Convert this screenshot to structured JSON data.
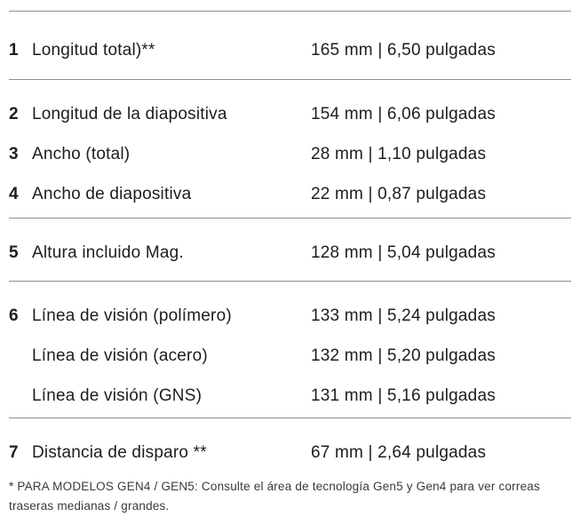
{
  "colors": {
    "background": "#ffffff",
    "text": "#1d1d1d",
    "separator": "#8f8f8f",
    "footnote_text": "#3a3a3a"
  },
  "spec_table": {
    "unit_separator": "|",
    "groups": [
      {
        "rows": [
          {
            "num": "1",
            "label": "Longitud total)**",
            "value": "165 mm | 6,50 pulgadas"
          }
        ]
      },
      {
        "rows": [
          {
            "num": "2",
            "label": "Longitud de la diapositiva",
            "value": "154 mm | 6,06 pulgadas"
          },
          {
            "num": "3",
            "label": "Ancho (total)",
            "value": "28 mm | 1,10 pulgadas"
          },
          {
            "num": "4",
            "label": "Ancho de diapositiva",
            "value": "22 mm | 0,87 pulgadas"
          }
        ]
      },
      {
        "rows": [
          {
            "num": "5",
            "label": "Altura incluido Mag.",
            "value": "128 mm | 5,04 pulgadas"
          }
        ]
      },
      {
        "rows": [
          {
            "num": "6",
            "label": "Línea de visión (polímero)",
            "value": "133 mm | 5,24 pulgadas"
          },
          {
            "num": "",
            "label": "Línea de visión (acero)",
            "value": "132 mm | 5,20 pulgadas"
          },
          {
            "num": "",
            "label": "Línea de visión (GNS)",
            "value": "131 mm | 5,16 pulgadas"
          }
        ]
      },
      {
        "rows": [
          {
            "num": "7",
            "label": "Distancia de disparo **",
            "value": "67 mm | 2,64 pulgadas"
          }
        ]
      }
    ],
    "footnote": "* PARA MODELOS GEN4 / GEN5: Consulte el área de tecnología Gen5 y Gen4 para ver correas traseras medianas / grandes."
  }
}
